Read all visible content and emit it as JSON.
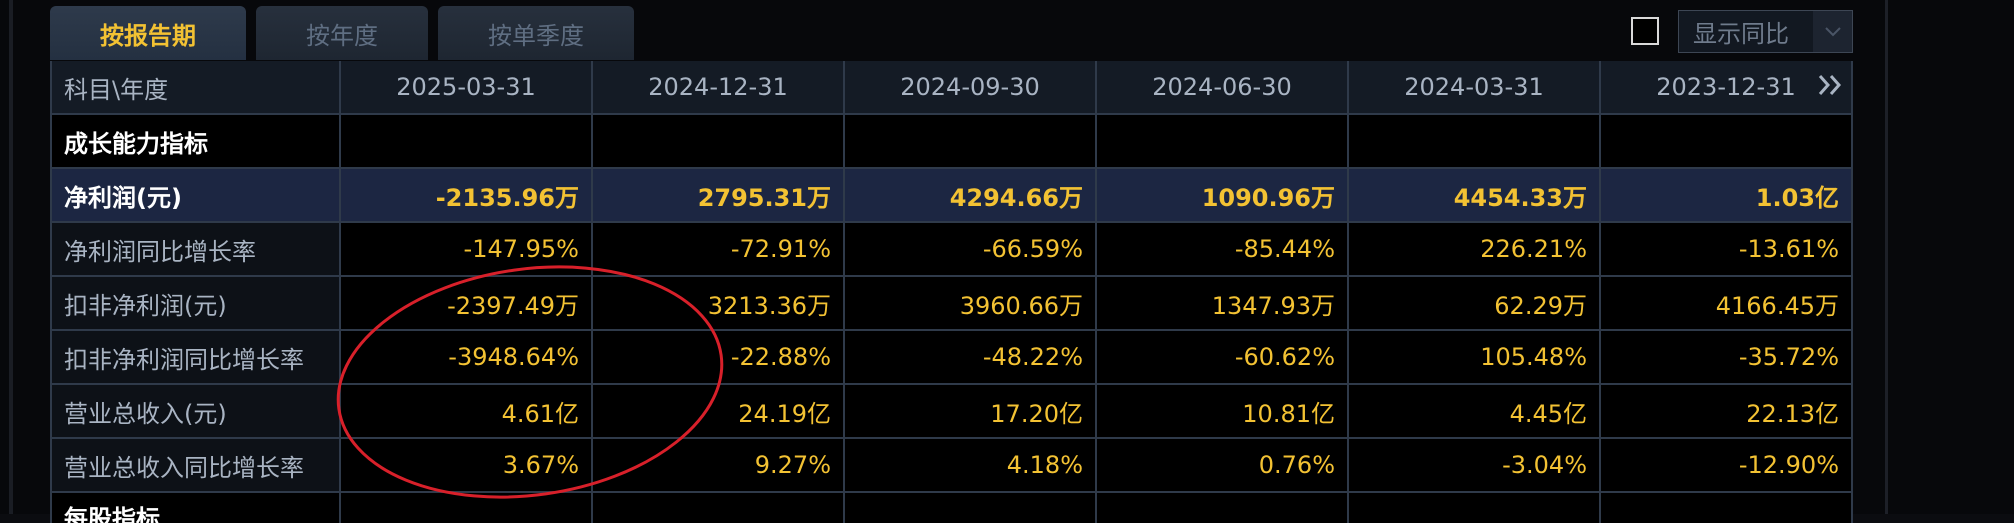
{
  "tabs": [
    {
      "label": "按报告期",
      "active": true
    },
    {
      "label": "按年度",
      "active": false
    },
    {
      "label": "按单季度",
      "active": false
    }
  ],
  "yoy_toggle": {
    "label": "显示同比",
    "checked": false
  },
  "table": {
    "corner_label": "科目\\年度",
    "columns": [
      "2025-03-31",
      "2024-12-31",
      "2024-09-30",
      "2024-06-30",
      "2024-03-31",
      "2023-12-31"
    ],
    "section_title": "成长能力指标",
    "rows": [
      {
        "label": "净利润(元)",
        "values": [
          "-2135.96万",
          "2795.31万",
          "4294.66万",
          "1090.96万",
          "4454.33万",
          "1.03亿"
        ],
        "highlight": true
      },
      {
        "label": "净利润同比增长率",
        "values": [
          "-147.95%",
          "-72.91%",
          "-66.59%",
          "-85.44%",
          "226.21%",
          "-13.61%"
        ]
      },
      {
        "label": "扣非净利润(元)",
        "values": [
          "-2397.49万",
          "3213.36万",
          "3960.66万",
          "1347.93万",
          "62.29万",
          "4166.45万"
        ]
      },
      {
        "label": "扣非净利润同比增长率",
        "values": [
          "-3948.64%",
          "-22.88%",
          "-48.22%",
          "-60.62%",
          "105.48%",
          "-35.72%"
        ]
      },
      {
        "label": "营业总收入(元)",
        "values": [
          "4.61亿",
          "24.19亿",
          "17.20亿",
          "10.81亿",
          "4.45亿",
          "22.13亿"
        ]
      },
      {
        "label": "营业总收入同比增长率",
        "values": [
          "3.67%",
          "9.27%",
          "4.18%",
          "0.76%",
          "-3.04%",
          "-12.90%"
        ]
      }
    ],
    "next_section_title": "每股指标"
  },
  "colors": {
    "accent": "#f3c233",
    "annotation": "#d8202a"
  },
  "icons": {
    "next_columns": "double-chevron-right-icon",
    "dropdown": "chevron-down-icon"
  }
}
